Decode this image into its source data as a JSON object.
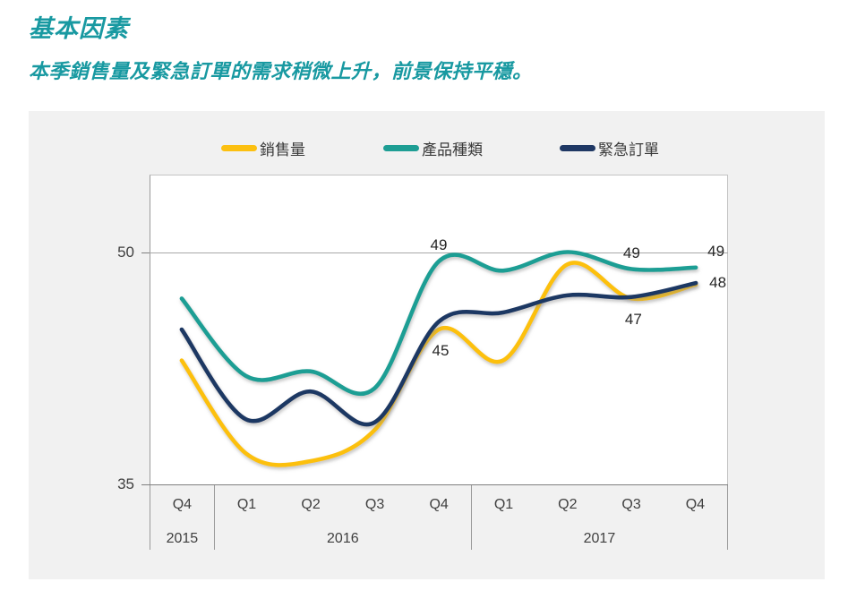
{
  "header": {
    "title": "基本因素",
    "subtitle": "本季銷售量及緊急訂單的需求稍微上升，前景保持平穩。",
    "accent_color": "#1899A1"
  },
  "chart_data": {
    "type": "line",
    "smooth": true,
    "panel_bg": "#F1F1F1",
    "plot_bg": "#FFFFFF",
    "ylim": [
      35,
      55
    ],
    "yticks": [
      {
        "value": 50,
        "label": "50"
      },
      {
        "value": 35,
        "label": "35"
      }
    ],
    "gridline_value": 50,
    "grid": "single-horizontal",
    "legend_position": "top",
    "x_groups": [
      {
        "year": "2015",
        "quarters": [
          "Q4"
        ]
      },
      {
        "year": "2016",
        "quarters": [
          "Q1",
          "Q2",
          "Q3",
          "Q4"
        ]
      },
      {
        "year": "2017",
        "quarters": [
          "Q1",
          "Q2",
          "Q3",
          "Q4"
        ]
      }
    ],
    "categories": [
      "2015 Q4",
      "2016 Q1",
      "2016 Q2",
      "2016 Q3",
      "2016 Q4",
      "2017 Q1",
      "2017 Q2",
      "2017 Q3",
      "2017 Q4"
    ],
    "series": [
      {
        "key": "sales-volume",
        "name": "銷售量",
        "color": "#FCC011",
        "values": [
          43,
          37,
          36.5,
          38.5,
          45,
          43,
          49.2,
          47,
          47.9
        ]
      },
      {
        "key": "product-variety",
        "name": "產品種類",
        "color": "#1E9E94",
        "values": [
          47,
          42,
          42.3,
          41.2,
          49.4,
          48.8,
          50,
          48.9,
          49
        ]
      },
      {
        "key": "urgent-orders",
        "name": "緊急訂單",
        "color": "#1F3864",
        "values": [
          45,
          39.2,
          41,
          39,
          45.5,
          46.1,
          47.2,
          47.1,
          48
        ]
      }
    ],
    "point_labels": [
      {
        "series": 1,
        "point": 4,
        "text": "49",
        "anchor": "above"
      },
      {
        "series": 0,
        "point": 4,
        "text": "45",
        "anchor": "below"
      },
      {
        "series": 1,
        "point": 7,
        "text": "49",
        "anchor": "above"
      },
      {
        "series": 0,
        "point": 7,
        "text": "47",
        "anchor": "below"
      },
      {
        "series": 1,
        "point": 8,
        "text": "49",
        "anchor": "end-top"
      },
      {
        "series": 2,
        "point": 8,
        "text": "48",
        "anchor": "end"
      }
    ]
  }
}
